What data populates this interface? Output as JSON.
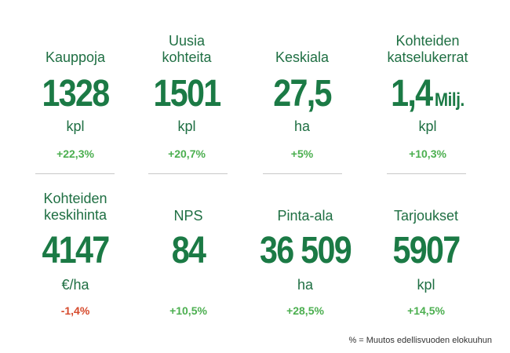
{
  "stats": [
    {
      "label": "Kauppoja",
      "value": "1328",
      "suffix": "",
      "unit": "kpl",
      "change": "+22,3%"
    },
    {
      "label": "Uusia\nkohteita",
      "value": "1501",
      "suffix": "",
      "unit": "kpl",
      "change": "+20,7%"
    },
    {
      "label": "Keskiala",
      "value": "27,5",
      "suffix": "",
      "unit": "ha",
      "change": "+5%"
    },
    {
      "label": "Kohteiden\nkatselukerrat",
      "value": "1,4",
      "suffix": "Milj.",
      "unit": "kpl",
      "change": "+10,3%"
    },
    {
      "label": "Kohteiden\nkeskihinta",
      "value": "4147",
      "suffix": "",
      "unit": "€/ha",
      "change": "-1,4%"
    },
    {
      "label": "NPS",
      "value": "84",
      "suffix": "",
      "unit": "",
      "change": "+10,5%"
    },
    {
      "label": "Pinta-ala",
      "value": "36 509",
      "suffix": "",
      "unit": "ha",
      "change": "+28,5%"
    },
    {
      "label": "Tarjoukset",
      "value": "5907",
      "suffix": "",
      "unit": "kpl",
      "change": "+14,5%"
    }
  ],
  "footnote": "% = Muutos edellisvuoden elokuuhun",
  "colors": {
    "primary_green": "#1b7a45",
    "positive_change": "#4caf50",
    "negative_change": "#d64a2c",
    "divider": "#c8c8c8"
  }
}
